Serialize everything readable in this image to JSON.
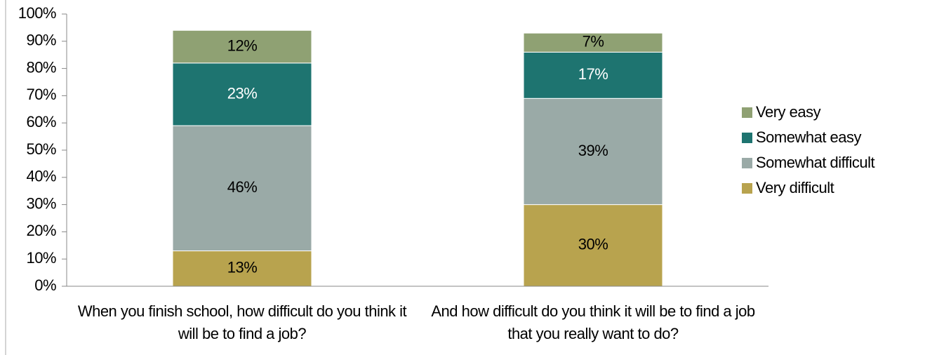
{
  "chart_data": {
    "type": "stacked_bar",
    "categories": [
      "When you finish school, how difficult do you think it will be to find a job?",
      "And how difficult do you think it will be to find a job that you really want to do?"
    ],
    "series": [
      {
        "name": "Very difficult",
        "color": "#b8a34e",
        "values": [
          13,
          30
        ],
        "value_labels": [
          "13%",
          "30%"
        ]
      },
      {
        "name": "Somewhat difficult",
        "color": "#9aaaa7",
        "values": [
          46,
          39
        ],
        "value_labels": [
          "46%",
          "39%"
        ]
      },
      {
        "name": "Somewhat easy",
        "color": "#1e7470",
        "values": [
          23,
          17
        ],
        "value_labels": [
          "23%",
          "17%"
        ]
      },
      {
        "name": "Very easy",
        "color": "#8fa173",
        "values": [
          12,
          7
        ],
        "value_labels": [
          "12%",
          "7%"
        ]
      }
    ],
    "ylim": [
      0,
      100
    ],
    "yticks": [
      {
        "value": 0,
        "label": "0%"
      },
      {
        "value": 10,
        "label": "10%"
      },
      {
        "value": 20,
        "label": "20%"
      },
      {
        "value": 30,
        "label": "30%"
      },
      {
        "value": 40,
        "label": "40%"
      },
      {
        "value": 50,
        "label": "50%"
      },
      {
        "value": 60,
        "label": "60%"
      },
      {
        "value": 70,
        "label": "70%"
      },
      {
        "value": 80,
        "label": "80%"
      },
      {
        "value": 90,
        "label": "90%"
      },
      {
        "value": 100,
        "label": "100%"
      }
    ],
    "legend": "right"
  }
}
